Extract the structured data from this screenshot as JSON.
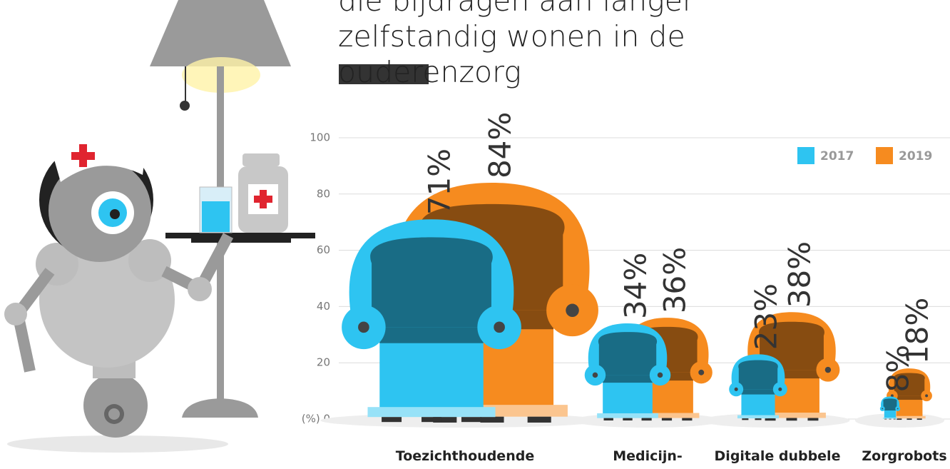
{
  "chart_data": {
    "type": "bar",
    "title": "die bijdragen aan langer zelfstandig wonen in de ouderenzorg",
    "categories": [
      "Toezichthoudende",
      "Medicijn-",
      "Digitale dubbele",
      "Zorgrobots"
    ],
    "series": [
      {
        "name": "2017",
        "color": "#2ec4f1",
        "values": [
          71,
          34,
          23,
          8
        ],
        "value_labels": [
          "71%",
          "34%",
          "23%",
          "8%"
        ]
      },
      {
        "name": "2019",
        "color": "#f68b1f",
        "values": [
          84,
          36,
          38,
          18
        ],
        "value_labels": [
          "84%",
          "36%",
          "38%",
          "18%"
        ]
      }
    ],
    "ylim": [
      0,
      100
    ],
    "yticks": [
      {
        "value": 0,
        "label": "(%) 0"
      },
      20,
      40,
      60,
      80,
      100
    ],
    "grid": true,
    "legend": "top-right"
  }
}
